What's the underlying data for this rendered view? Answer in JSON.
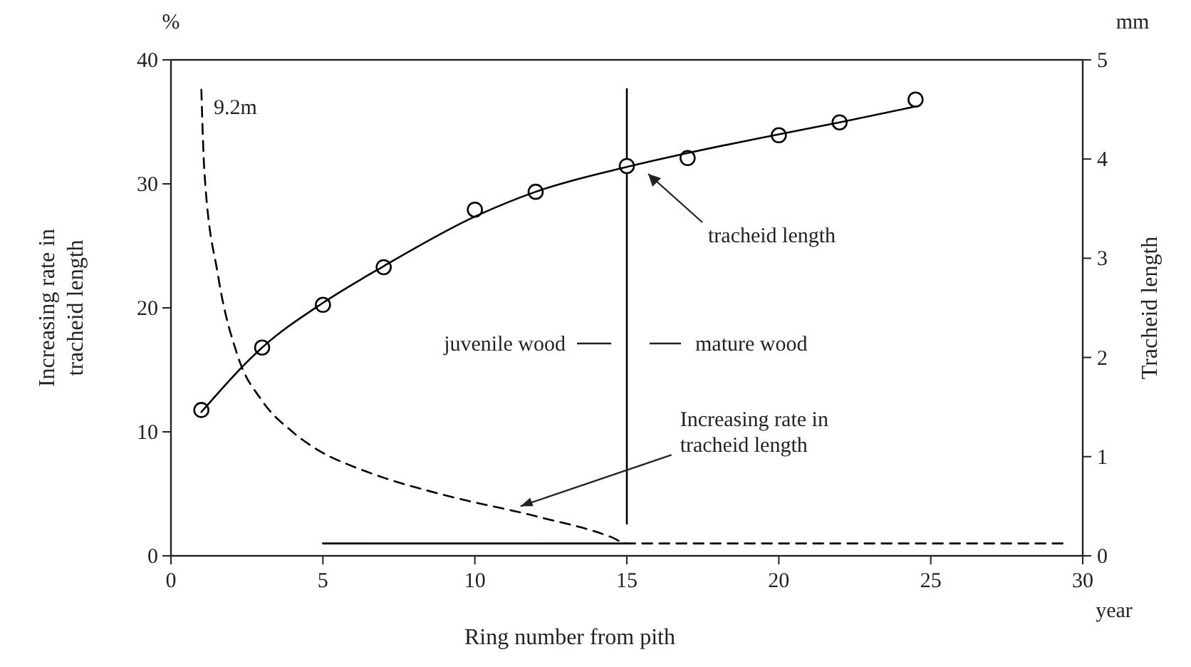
{
  "chart_data": {
    "type": "line",
    "xlabel": "Ring number from pith",
    "ylabel": "Increasing rate in\ntracheid length",
    "y2label": "Tracheid length",
    "xlim": [
      0,
      30
    ],
    "xticks": [
      0,
      5,
      10,
      15,
      20,
      25,
      30
    ],
    "ylim": [
      0,
      40
    ],
    "yticks": [
      0,
      10,
      20,
      30,
      40
    ],
    "y2lim": [
      0,
      5
    ],
    "y2ticks": [
      0,
      1,
      2,
      3,
      4,
      5
    ],
    "grid": false,
    "series": [
      {
        "type": "scatter",
        "axis": "y2",
        "marker": "circle",
        "color": "#000000",
        "x": [
          1,
          3,
          5,
          7,
          10,
          12,
          15,
          17,
          20,
          22,
          24.5
        ],
        "values": [
          1.47,
          2.1,
          2.53,
          2.91,
          3.49,
          3.67,
          3.93,
          4.01,
          4.24,
          4.37,
          4.6
        ]
      },
      {
        "axis": "y2",
        "line_style": "solid",
        "color": "#000000",
        "x": [
          1,
          3,
          5,
          7,
          10,
          12,
          15,
          17,
          20,
          22,
          24.5
        ],
        "values": [
          1.45,
          2.1,
          2.55,
          2.92,
          3.42,
          3.67,
          3.92,
          4.06,
          4.25,
          4.37,
          4.53
        ]
      },
      {
        "axis": "y",
        "line_style": "dashed",
        "color": "#000000",
        "x": [
          1,
          1.1,
          1.55,
          2.2,
          3,
          4,
          5,
          6,
          7,
          9,
          12,
          14.5,
          15,
          20,
          25,
          29.4
        ],
        "values": [
          37.6,
          31,
          22.6,
          16.1,
          12.5,
          10,
          8.3,
          7.2,
          6.3,
          4.9,
          3.2,
          1.5,
          1,
          1,
          1,
          1
        ]
      },
      {
        "axis": "y",
        "line_style": "solid",
        "color": "#000000",
        "x": [
          5,
          15
        ],
        "values": [
          1,
          1
        ]
      }
    ],
    "ref_lines": [
      {
        "axis": "x",
        "value": 15,
        "color": "#000000",
        "line_style": "solid"
      }
    ],
    "annotations": [
      "9.2m",
      "tracheid length",
      "juvenile wood",
      "mature wood",
      {
        "text": "Increasing rate in\ntracheid length",
        "x": 11.5,
        "y": 4
      },
      "%",
      "mm",
      "year"
    ]
  }
}
